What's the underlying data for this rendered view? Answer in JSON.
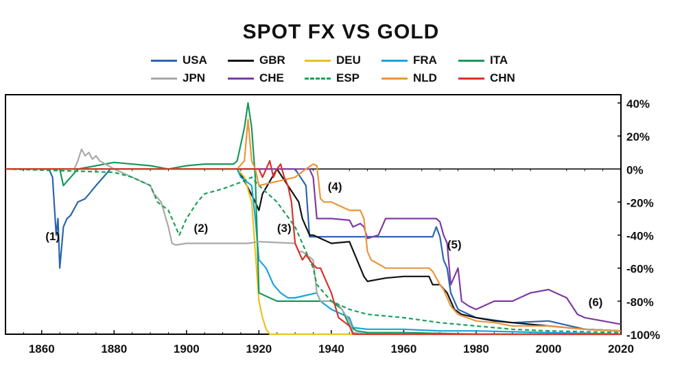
{
  "chart_data": {
    "type": "line",
    "title": "SPOT FX VS GOLD",
    "xlabel": "",
    "ylabel": "",
    "xlim": [
      1850,
      2020
    ],
    "ylim": [
      -100,
      45
    ],
    "x_ticks": [
      "1860",
      "1880",
      "1900",
      "1920",
      "1940",
      "1960",
      "1980",
      "2000",
      "2020"
    ],
    "y_ticks": [
      "40%",
      "20%",
      "0%",
      "-20%",
      "-40%",
      "-60%",
      "-80%",
      "-100%"
    ],
    "legend_position": "top",
    "annotations": [
      {
        "text": "(1)",
        "x": 1863,
        "y": -43
      },
      {
        "text": "(2)",
        "x": 1904,
        "y": -38
      },
      {
        "text": "(3)",
        "x": 1927,
        "y": -38
      },
      {
        "text": "(4)",
        "x": 1941,
        "y": -13
      },
      {
        "text": "(5)",
        "x": 1974,
        "y": -48
      },
      {
        "text": "(6)",
        "x": 2013,
        "y": -83
      }
    ],
    "series": [
      {
        "name": "USA",
        "color": "#2a64b0",
        "dash": "",
        "x": [
          1850,
          1862,
          1863,
          1864,
          1864.5,
          1865,
          1866,
          1867,
          1868,
          1870,
          1872,
          1875,
          1879,
          1930,
          1933,
          1934,
          1945,
          1950,
          1960,
          1968,
          1969,
          1970,
          1971,
          1972,
          1973,
          1974,
          1975,
          1978,
          1980,
          1990,
          2000,
          2010,
          2020
        ],
        "y": [
          0,
          0,
          -5,
          -40,
          -30,
          -60,
          -35,
          -30,
          -28,
          -20,
          -18,
          -10,
          0,
          0,
          -10,
          -41,
          -41,
          -41,
          -41,
          -41,
          -35,
          -41,
          -55,
          -60,
          -75,
          -80,
          -85,
          -88,
          -90,
          -93,
          -92,
          -97,
          -98
        ]
      },
      {
        "name": "GBR",
        "color": "#111111",
        "dash": "",
        "x": [
          1850,
          1914,
          1915,
          1919,
          1920,
          1921,
          1925,
          1931,
          1932,
          1933,
          1934,
          1935,
          1940,
          1945,
          1949,
          1950,
          1955,
          1960,
          1967,
          1968,
          1970,
          1972,
          1974,
          1976,
          1980,
          1985,
          1990,
          2000,
          2010,
          2020
        ],
        "y": [
          0,
          0,
          -3,
          -20,
          -25,
          -15,
          0,
          -20,
          -30,
          -35,
          -40,
          -40,
          -45,
          -44,
          -65,
          -68,
          -66,
          -65,
          -65,
          -70,
          -70,
          -75,
          -85,
          -88,
          -90,
          -92,
          -93,
          -95,
          -97,
          -98
        ]
      },
      {
        "name": "DEU",
        "color": "#e9c11a",
        "dash": "",
        "x": [
          1850,
          1914,
          1916,
          1918,
          1919,
          1920,
          1921,
          1922,
          1923,
          1930,
          1950,
          2000,
          2020
        ],
        "y": [
          0,
          0,
          -5,
          -20,
          -50,
          -80,
          -90,
          -97,
          -100,
          -100,
          -100,
          -100,
          -100
        ]
      },
      {
        "name": "FRA",
        "color": "#16a4dc",
        "dash": "",
        "x": [
          1850,
          1914,
          1915,
          1918,
          1919,
          1920,
          1922,
          1924,
          1926,
          1928,
          1930,
          1936,
          1937,
          1940,
          1945,
          1946,
          1950,
          1960,
          1970,
          1980,
          2000,
          2020
        ],
        "y": [
          0,
          0,
          -5,
          -10,
          -30,
          -55,
          -60,
          -70,
          -75,
          -78,
          -78,
          -75,
          -80,
          -85,
          -90,
          -96,
          -97,
          -97,
          -98,
          -98,
          -99,
          -100
        ]
      },
      {
        "name": "ITA",
        "color": "#19985a",
        "dash": "",
        "x": [
          1850,
          1855,
          1865,
          1866,
          1870,
          1875,
          1880,
          1890,
          1895,
          1900,
          1905,
          1910,
          1913,
          1914,
          1915,
          1916,
          1917,
          1918,
          1919,
          1920,
          1925,
          1930,
          1935,
          1940,
          1943,
          1945,
          1947,
          1950,
          1960,
          1980,
          2000,
          2020
        ],
        "y": [
          0,
          0,
          0,
          -10,
          0,
          2,
          4,
          2,
          0,
          2,
          3,
          3,
          3,
          5,
          15,
          25,
          40,
          25,
          -5,
          -75,
          -80,
          -80,
          -80,
          -80,
          -85,
          -95,
          -98,
          -99,
          -99,
          -100,
          -100,
          -100
        ]
      },
      {
        "name": "JPN",
        "color": "#a9a9a9",
        "dash": "",
        "x": [
          1850,
          1869,
          1870,
          1871,
          1872,
          1873,
          1874,
          1875,
          1876,
          1880,
          1885,
          1890,
          1891,
          1893,
          1895,
          1896,
          1897,
          1900,
          1910,
          1917,
          1920,
          1930,
          1931,
          1932,
          1935,
          1936,
          1937,
          1940,
          1942,
          1945,
          1946,
          1950,
          2000,
          2020
        ],
        "y": [
          0,
          0,
          5,
          12,
          8,
          10,
          6,
          8,
          5,
          0,
          -5,
          -10,
          -15,
          -20,
          -35,
          -45,
          -46,
          -45,
          -45,
          -45,
          -44,
          -45,
          -50,
          -50,
          -55,
          -75,
          -80,
          -80,
          -82,
          -92,
          -99,
          -100,
          -100,
          -100
        ]
      },
      {
        "name": "CHE",
        "color": "#7e3aa0",
        "dash": "",
        "x": [
          1850,
          1933,
          1934,
          1935,
          1936,
          1937,
          1940,
          1945,
          1946,
          1948,
          1949,
          1950,
          1953,
          1955,
          1960,
          1965,
          1968,
          1969,
          1970,
          1971,
          1972,
          1973,
          1974,
          1975,
          1976,
          1978,
          1980,
          1985,
          1990,
          1995,
          2000,
          2005,
          2008,
          2010,
          2015,
          2020
        ],
        "y": [
          0,
          0,
          0,
          -5,
          -30,
          -30,
          -30,
          -31,
          -35,
          -33,
          -35,
          -42,
          -40,
          -30,
          -30,
          -30,
          -30,
          -30,
          -32,
          -40,
          -45,
          -70,
          -65,
          -60,
          -80,
          -83,
          -85,
          -80,
          -80,
          -75,
          -73,
          -78,
          -88,
          -90,
          -92,
          -94
        ]
      },
      {
        "name": "ESP",
        "color": "#19a05a",
        "dash": "6,4",
        "x": [
          1850,
          1880,
          1885,
          1890,
          1892,
          1895,
          1897,
          1898,
          1900,
          1903,
          1905,
          1910,
          1915,
          1918,
          1920,
          1925,
          1930,
          1935,
          1936,
          1940,
          1945,
          1950,
          1960,
          1970,
          1980,
          1990,
          2000,
          2020
        ],
        "y": [
          0,
          -2,
          -5,
          -10,
          -20,
          -25,
          -35,
          -40,
          -30,
          -20,
          -15,
          -12,
          -8,
          -5,
          -10,
          -20,
          -35,
          -60,
          -70,
          -80,
          -85,
          -88,
          -90,
          -93,
          -95,
          -97,
          -98,
          -99
        ]
      },
      {
        "name": "NLD",
        "color": "#e9953b",
        "dash": "",
        "x": [
          1850,
          1914,
          1916,
          1917,
          1918,
          1919,
          1920,
          1930,
          1933,
          1935,
          1936,
          1937,
          1938,
          1940,
          1942,
          1945,
          1948,
          1949,
          1950,
          1951,
          1955,
          1960,
          1967,
          1968,
          1970,
          1971,
          1972,
          1973,
          1975,
          1980,
          1985,
          1990,
          2000,
          2010,
          2020
        ],
        "y": [
          0,
          0,
          5,
          30,
          5,
          0,
          -10,
          -5,
          0,
          3,
          2,
          -18,
          -20,
          -20,
          -22,
          -25,
          -25,
          -30,
          -50,
          -55,
          -60,
          -60,
          -60,
          -62,
          -70,
          -73,
          -78,
          -83,
          -88,
          -92,
          -93,
          -95,
          -95,
          -97,
          -98
        ]
      },
      {
        "name": "CHN",
        "color": "#d6322a",
        "dash": "",
        "x": [
          1850,
          1920,
          1921,
          1922,
          1923,
          1924,
          1925,
          1926,
          1927,
          1928,
          1929,
          1930,
          1931,
          1932,
          1933,
          1935,
          1936,
          1937,
          1938,
          1940,
          1942,
          1945,
          1946,
          1947,
          1950,
          2020
        ],
        "y": [
          0,
          0,
          -5,
          0,
          5,
          -5,
          0,
          3,
          -5,
          -10,
          -20,
          -45,
          -50,
          -55,
          -52,
          -58,
          -60,
          -60,
          -65,
          -75,
          -90,
          -95,
          -100,
          -100,
          -100,
          -100
        ]
      }
    ]
  }
}
